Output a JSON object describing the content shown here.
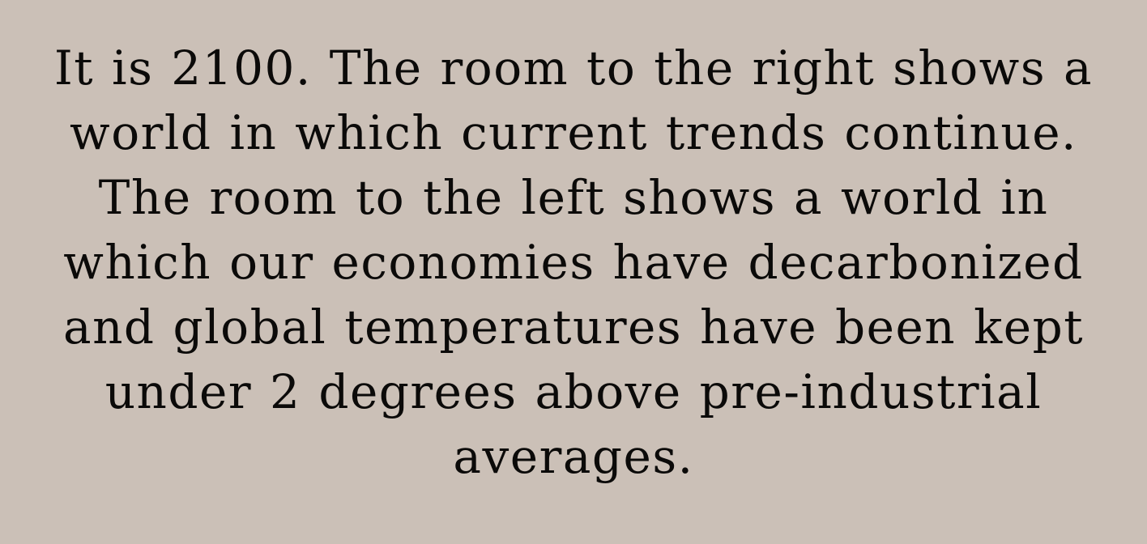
{
  "statement": {
    "lines": [
      "It is 2100. The room to the right shows a",
      "world in which current trends continue.",
      "The room to the left shows a world in",
      "which our economies have decarbonized",
      "and global temperatures have been kept",
      "under 2 degrees above pre-industrial",
      "averages."
    ]
  },
  "colors": {
    "background": "#cbc0b7",
    "text": "#0b0a09"
  }
}
